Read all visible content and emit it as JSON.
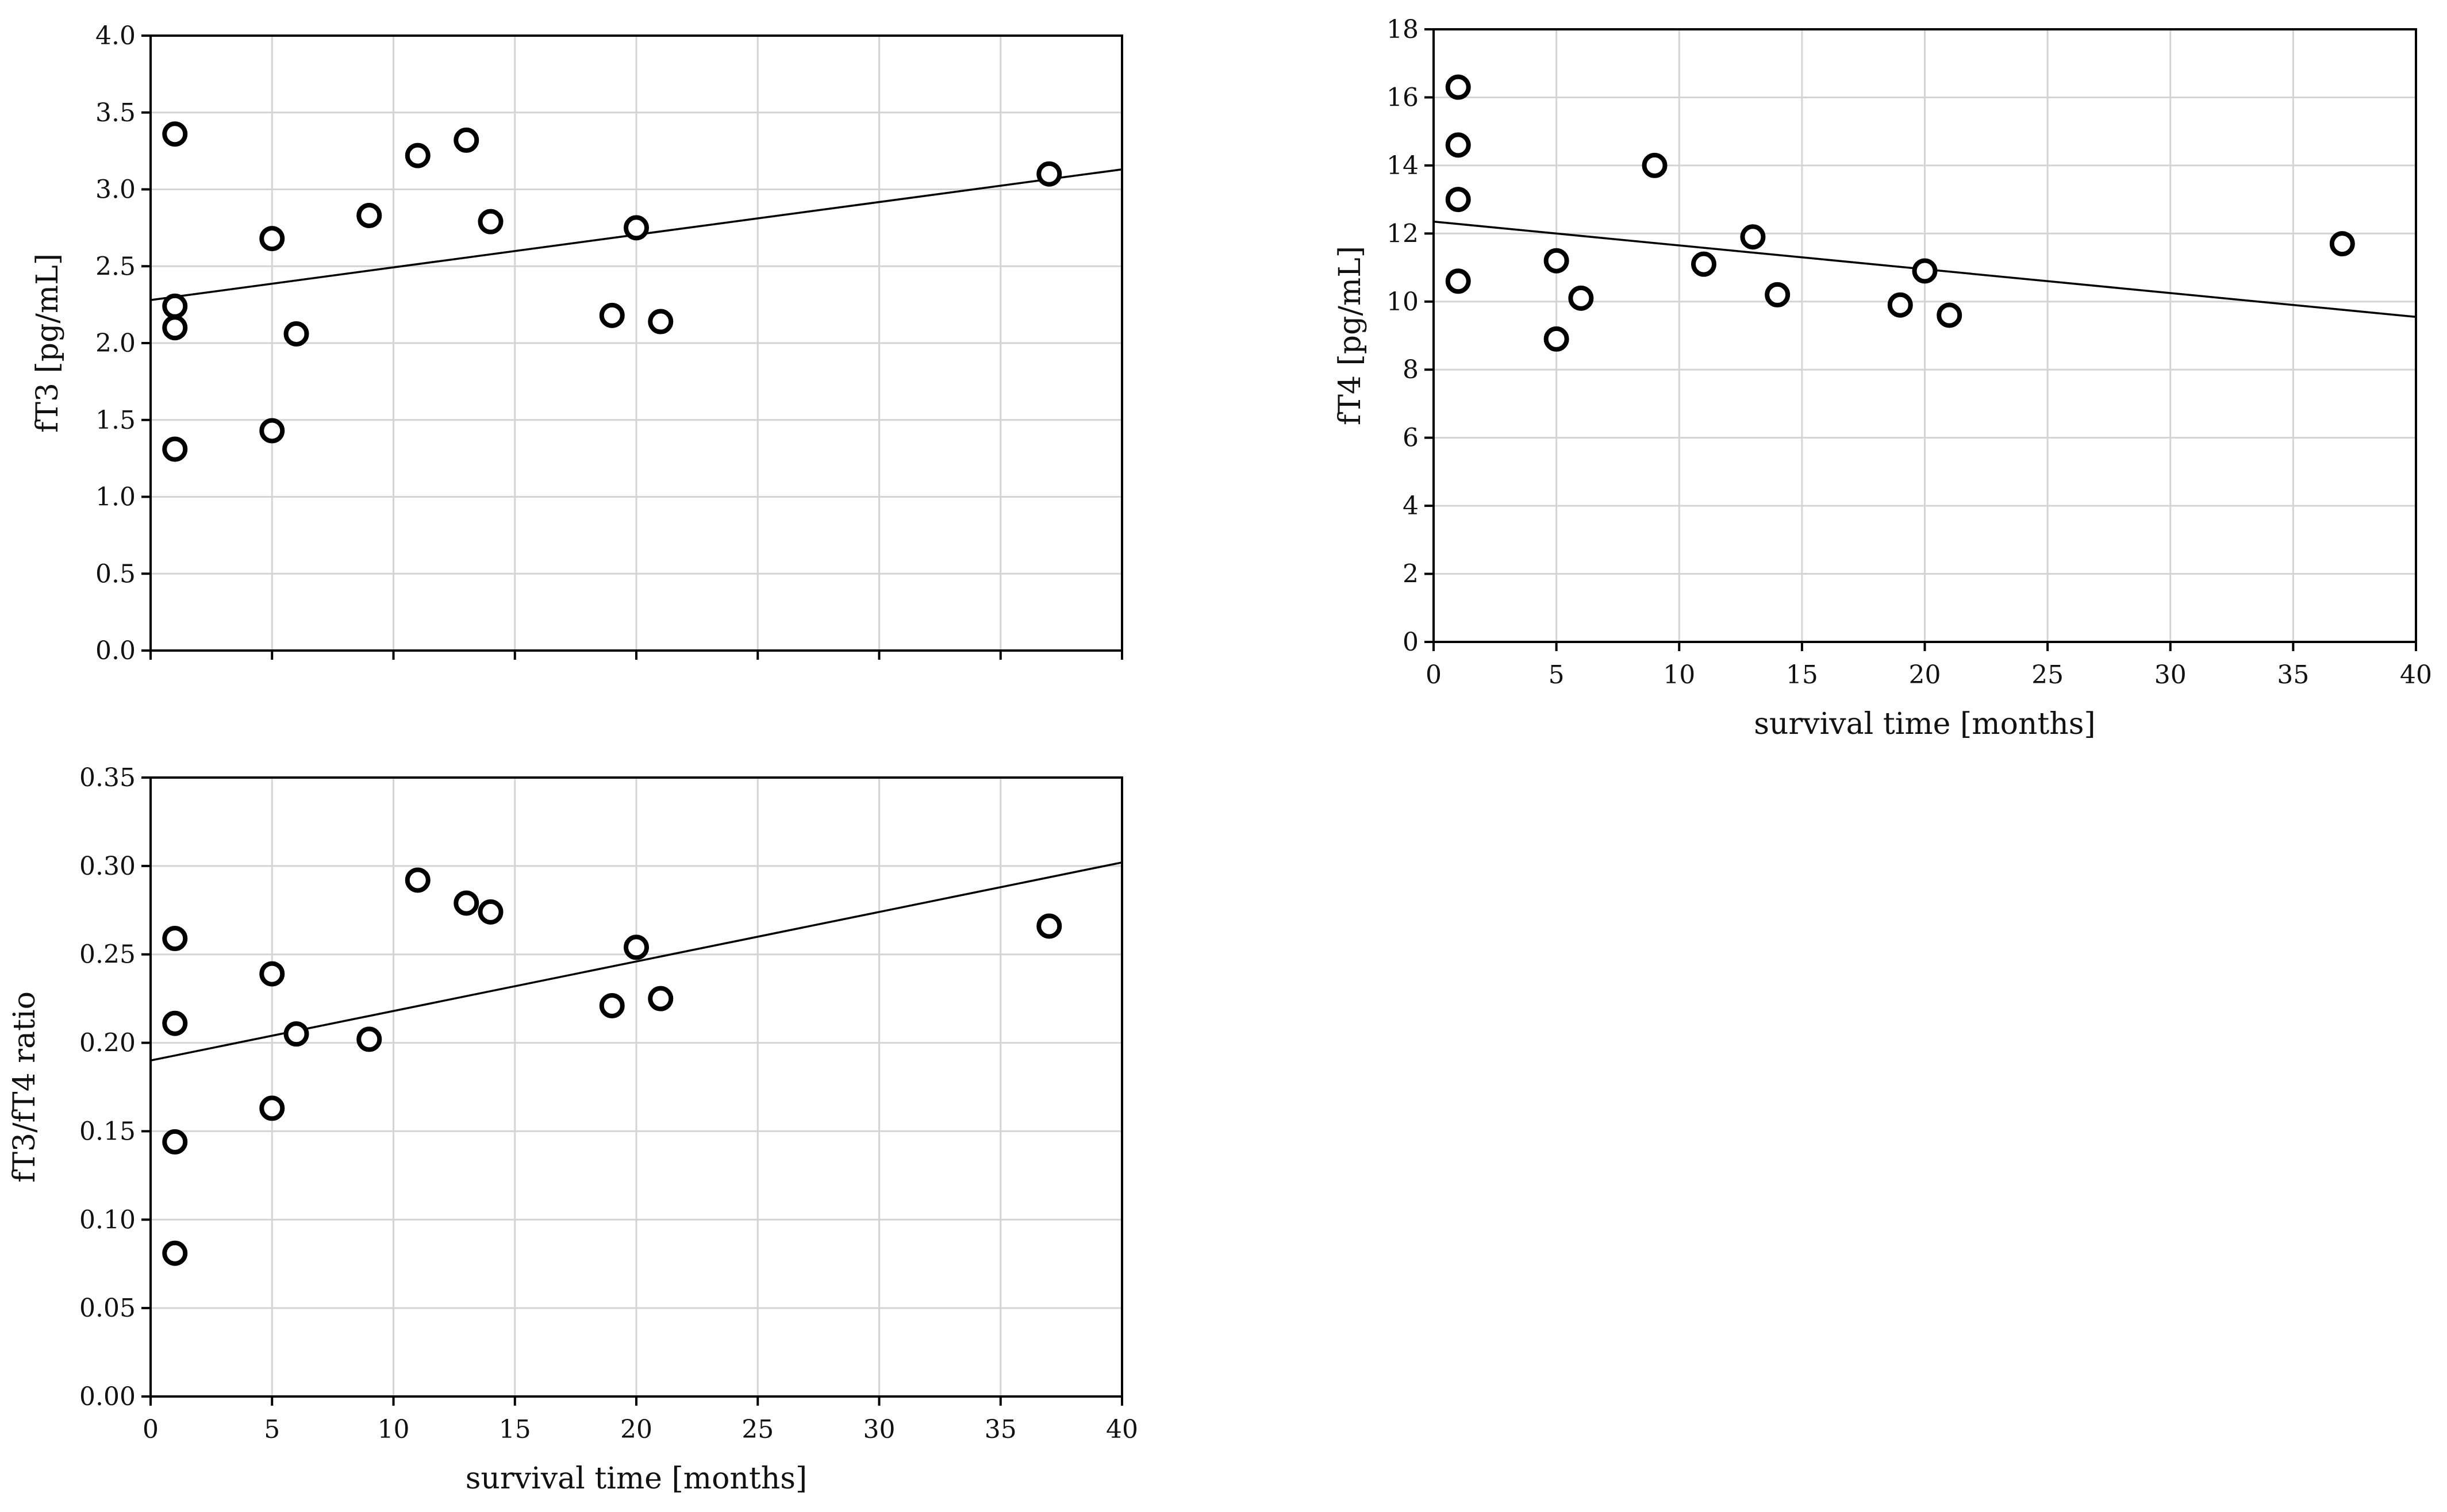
{
  "chart_data": [
    {
      "id": "ft3",
      "type": "scatter",
      "title": "",
      "xlabel": "",
      "ylabel": "fT3 [pg/mL]",
      "xlim": [
        0,
        40
      ],
      "ylim": [
        0,
        4.0
      ],
      "xticks": [
        0,
        5,
        10,
        15,
        20,
        25,
        30,
        35,
        40
      ],
      "yticks": [
        0.0,
        0.5,
        1.0,
        1.5,
        2.0,
        2.5,
        3.0,
        3.5,
        4.0
      ],
      "ytick_labels": [
        "0.0",
        "0.5",
        "1.0",
        "1.5",
        "2.0",
        "2.5",
        "3.0",
        "3.5",
        "4.0"
      ],
      "show_xtick_labels": false,
      "grid": true,
      "points": [
        {
          "x": 1,
          "y": 3.36
        },
        {
          "x": 1,
          "y": 2.24
        },
        {
          "x": 1,
          "y": 2.1
        },
        {
          "x": 1,
          "y": 1.31
        },
        {
          "x": 5,
          "y": 2.68
        },
        {
          "x": 5,
          "y": 1.43
        },
        {
          "x": 6,
          "y": 2.06
        },
        {
          "x": 9,
          "y": 2.83
        },
        {
          "x": 11,
          "y": 3.22
        },
        {
          "x": 13,
          "y": 3.32
        },
        {
          "x": 14,
          "y": 2.79
        },
        {
          "x": 19,
          "y": 2.18
        },
        {
          "x": 20,
          "y": 2.75
        },
        {
          "x": 21,
          "y": 2.14
        },
        {
          "x": 37,
          "y": 3.1
        }
      ],
      "fit_line": {
        "x": [
          0,
          40
        ],
        "y": [
          2.28,
          3.13
        ]
      }
    },
    {
      "id": "ft4",
      "type": "scatter",
      "title": "",
      "xlabel": "survival time [months]",
      "ylabel": "fT4 [pg/mL]",
      "xlim": [
        0,
        40
      ],
      "ylim": [
        0,
        18
      ],
      "xticks": [
        0,
        5,
        10,
        15,
        20,
        25,
        30,
        35,
        40
      ],
      "yticks": [
        0,
        2,
        4,
        6,
        8,
        10,
        12,
        14,
        16,
        18
      ],
      "ytick_labels": [
        "0",
        "2",
        "4",
        "6",
        "8",
        "10",
        "12",
        "14",
        "16",
        "18"
      ],
      "show_xtick_labels": true,
      "grid": true,
      "points": [
        {
          "x": 1,
          "y": 16.3
        },
        {
          "x": 1,
          "y": 14.6
        },
        {
          "x": 1,
          "y": 13.0
        },
        {
          "x": 1,
          "y": 10.6
        },
        {
          "x": 5,
          "y": 11.2
        },
        {
          "x": 5,
          "y": 8.9
        },
        {
          "x": 6,
          "y": 10.1
        },
        {
          "x": 9,
          "y": 14.0
        },
        {
          "x": 11,
          "y": 11.1
        },
        {
          "x": 13,
          "y": 11.9
        },
        {
          "x": 14,
          "y": 10.2
        },
        {
          "x": 19,
          "y": 9.9
        },
        {
          "x": 20,
          "y": 10.9
        },
        {
          "x": 21,
          "y": 9.6
        },
        {
          "x": 37,
          "y": 11.7
        }
      ],
      "fit_line": {
        "x": [
          0,
          40
        ],
        "y": [
          12.35,
          9.55
        ]
      }
    },
    {
      "id": "ratio",
      "type": "scatter",
      "title": "",
      "xlabel": "survival time [months]",
      "ylabel": "fT3/fT4 ratio",
      "xlim": [
        0,
        40
      ],
      "ylim": [
        0,
        0.35
      ],
      "xticks": [
        0,
        5,
        10,
        15,
        20,
        25,
        30,
        35,
        40
      ],
      "yticks": [
        0.0,
        0.05,
        0.1,
        0.15,
        0.2,
        0.25,
        0.3,
        0.35
      ],
      "ytick_labels": [
        "0.00",
        "0.05",
        "0.10",
        "0.15",
        "0.20",
        "0.25",
        "0.30",
        "0.35"
      ],
      "show_xtick_labels": true,
      "grid": true,
      "points": [
        {
          "x": 1,
          "y": 0.259
        },
        {
          "x": 1,
          "y": 0.211
        },
        {
          "x": 1,
          "y": 0.144
        },
        {
          "x": 1,
          "y": 0.081
        },
        {
          "x": 5,
          "y": 0.239
        },
        {
          "x": 5,
          "y": 0.163
        },
        {
          "x": 6,
          "y": 0.205
        },
        {
          "x": 9,
          "y": 0.202
        },
        {
          "x": 11,
          "y": 0.292
        },
        {
          "x": 13,
          "y": 0.279
        },
        {
          "x": 14,
          "y": 0.274
        },
        {
          "x": 19,
          "y": 0.221
        },
        {
          "x": 20,
          "y": 0.254
        },
        {
          "x": 21,
          "y": 0.225
        },
        {
          "x": 37,
          "y": 0.266
        }
      ],
      "fit_line": {
        "x": [
          0,
          40
        ],
        "y": [
          0.19,
          0.302
        ]
      }
    }
  ]
}
